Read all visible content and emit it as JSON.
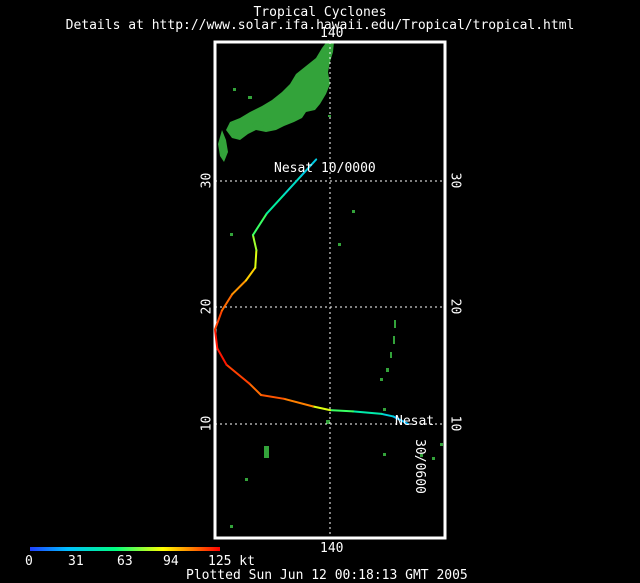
{
  "header": {
    "title": "Tropical Cyclones",
    "subtitle": "Details at http://www.solar.ifa.hawaii.edu/Tropical/tropical.html"
  },
  "map": {
    "lon_labels": {
      "top": "140",
      "bottom": "140"
    },
    "lat_labels_left": [
      "30",
      "20",
      "10"
    ],
    "lat_labels_right": [
      "30",
      "20",
      "10"
    ],
    "grid": "dotted",
    "land_color": "#33a33a",
    "frame_color": "#ffffff"
  },
  "storm": {
    "name": "Nesat",
    "start_label": "Nesat",
    "start_time": "30/0600",
    "end_label": "Nesat 10/0000",
    "track": [
      {
        "lon": 146.8,
        "lat": 10.0,
        "kt": 25
      },
      {
        "lon": 145.5,
        "lat": 10.6,
        "kt": 35
      },
      {
        "lon": 144.5,
        "lat": 10.8,
        "kt": 45
      },
      {
        "lon": 142.0,
        "lat": 11.0,
        "kt": 60
      },
      {
        "lon": 140.0,
        "lat": 11.1,
        "kt": 80
      },
      {
        "lon": 138.5,
        "lat": 11.4,
        "kt": 100
      },
      {
        "lon": 136.0,
        "lat": 12.0,
        "kt": 120
      },
      {
        "lon": 134.0,
        "lat": 12.3,
        "kt": 110
      },
      {
        "lon": 133.0,
        "lat": 13.2,
        "kt": 115
      },
      {
        "lon": 131.0,
        "lat": 14.7,
        "kt": 120
      },
      {
        "lon": 130.2,
        "lat": 16.0,
        "kt": 125
      },
      {
        "lon": 130.0,
        "lat": 17.5,
        "kt": 120
      },
      {
        "lon": 130.6,
        "lat": 19.0,
        "kt": 115
      },
      {
        "lon": 131.5,
        "lat": 20.3,
        "kt": 110
      },
      {
        "lon": 132.7,
        "lat": 21.4,
        "kt": 105
      },
      {
        "lon": 133.5,
        "lat": 22.4,
        "kt": 95
      },
      {
        "lon": 133.6,
        "lat": 23.8,
        "kt": 85
      },
      {
        "lon": 133.3,
        "lat": 25.0,
        "kt": 80
      },
      {
        "lon": 134.5,
        "lat": 26.7,
        "kt": 60
      },
      {
        "lon": 136.0,
        "lat": 28.2,
        "kt": 50
      },
      {
        "lon": 137.5,
        "lat": 29.7,
        "kt": 40
      },
      {
        "lon": 138.8,
        "lat": 31.0,
        "kt": 35
      }
    ]
  },
  "legend": {
    "ticks": [
      "0",
      "31",
      "63",
      "94",
      "125 kt"
    ],
    "colors": [
      "#2040ff",
      "#00c0ff",
      "#00ff80",
      "#ffff00",
      "#ff8000",
      "#ff0000"
    ]
  },
  "footer": {
    "plotted": "Plotted Sun Jun 12 00:18:13 GMT 2005"
  }
}
